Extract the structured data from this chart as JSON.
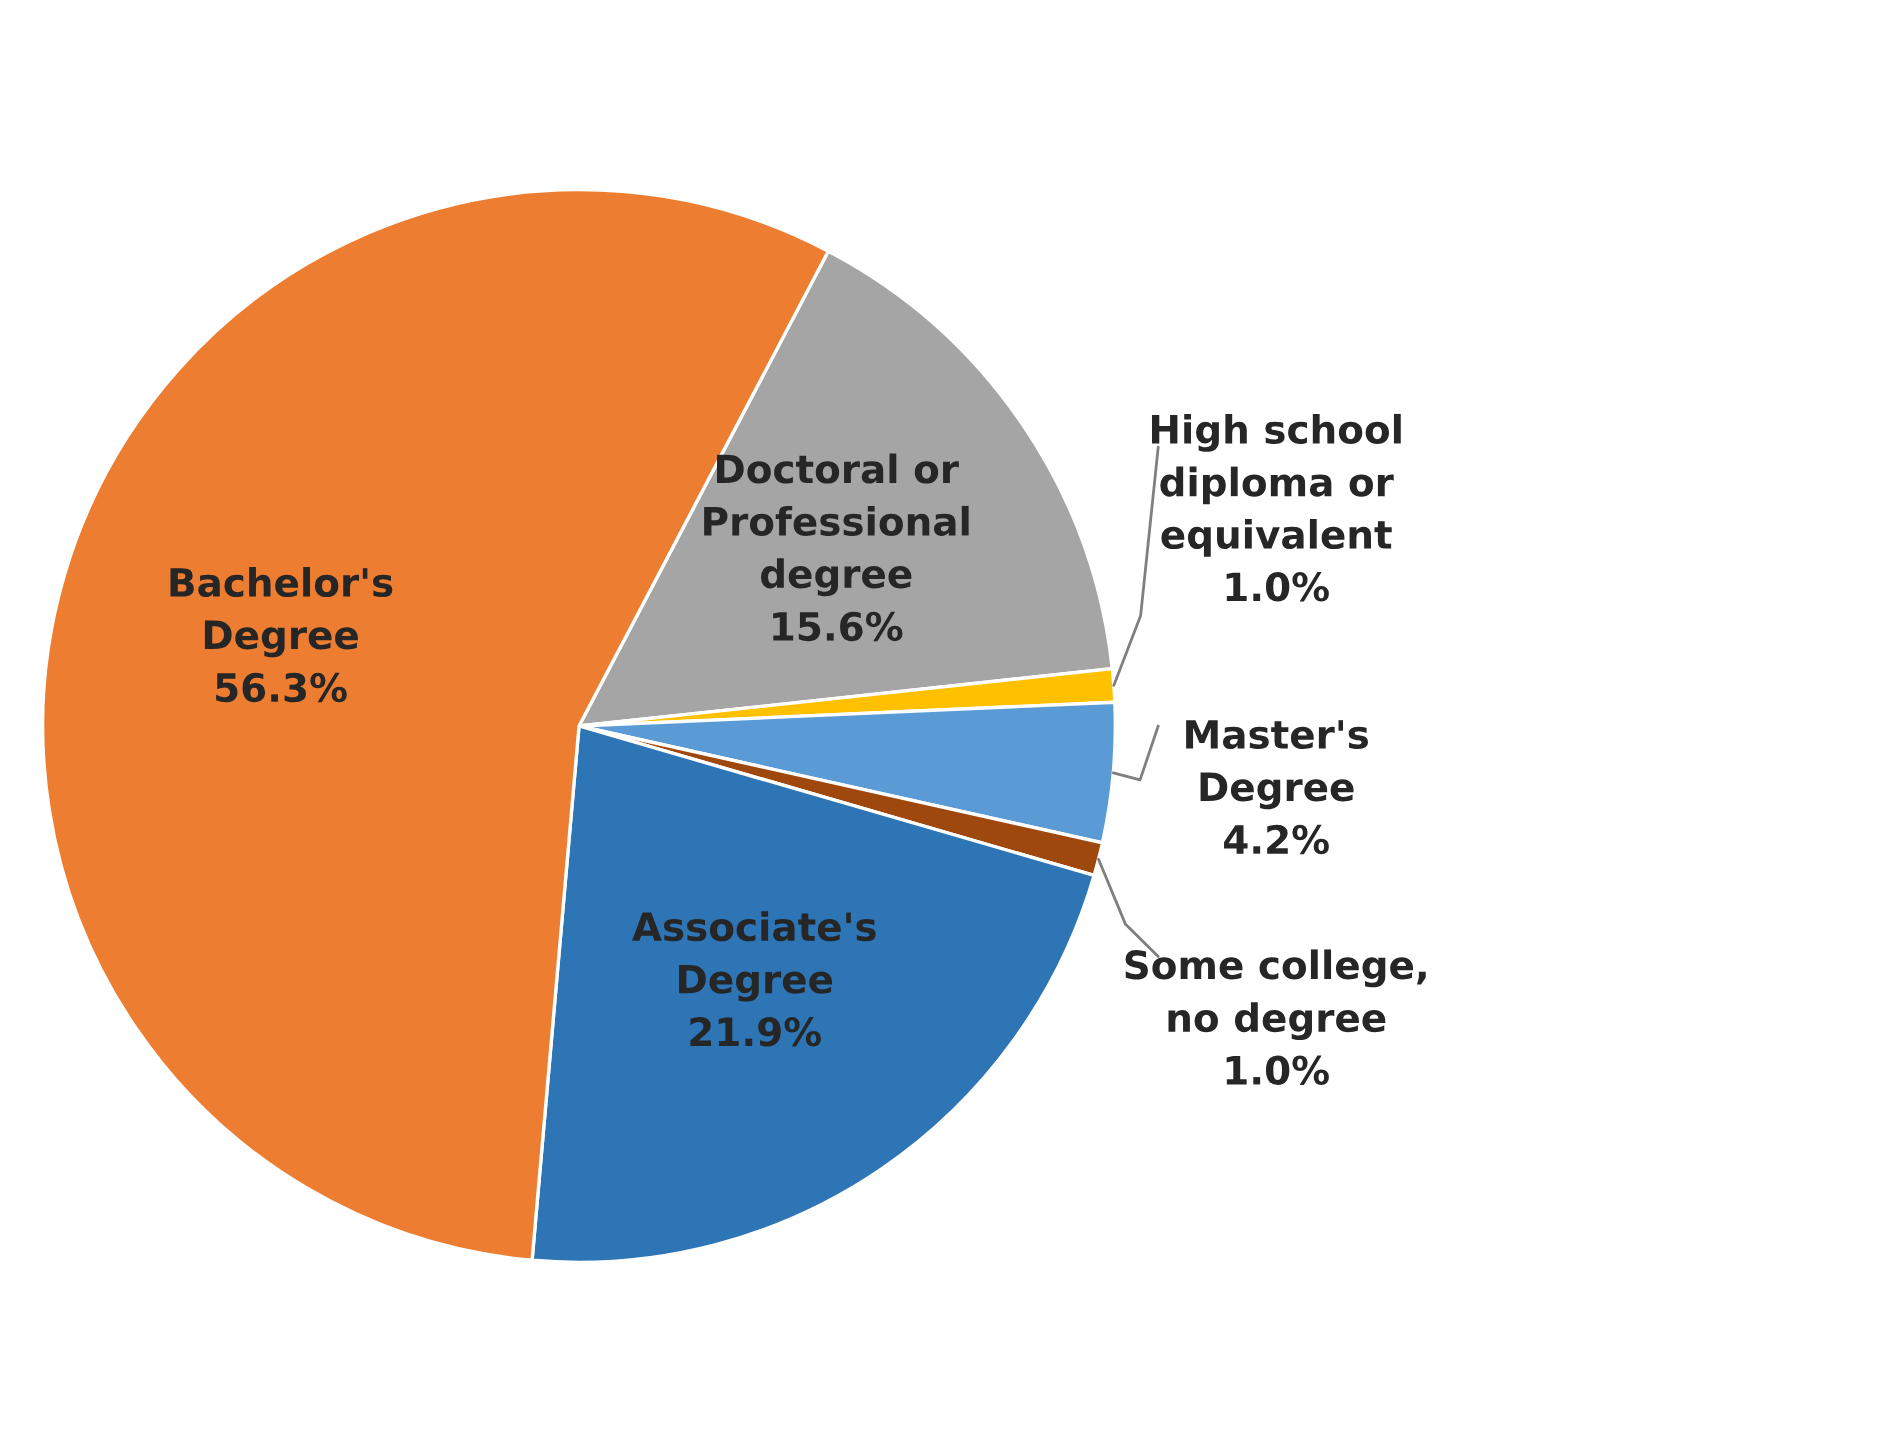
{
  "chart_data": {
    "type": "pie",
    "categories": [
      "Doctoral or\nProfessional\ndegree",
      "High school\ndiploma or\nequivalent",
      "Master's\nDegree",
      "Some college,\nno degree",
      "Associate's\nDegree",
      "Bachelor's\nDegree"
    ],
    "values": [
      15.6,
      1.0,
      4.2,
      1.0,
      21.9,
      56.3
    ],
    "value_labels": [
      "15.6%",
      "1.0%",
      "4.2%",
      "1.0%",
      "21.9%",
      "56.3%"
    ],
    "colors": [
      "#a5a5a5",
      "#ffc000",
      "#5b9bd5",
      "#9e480e",
      "#2e75b6",
      "#ed7d31"
    ]
  }
}
